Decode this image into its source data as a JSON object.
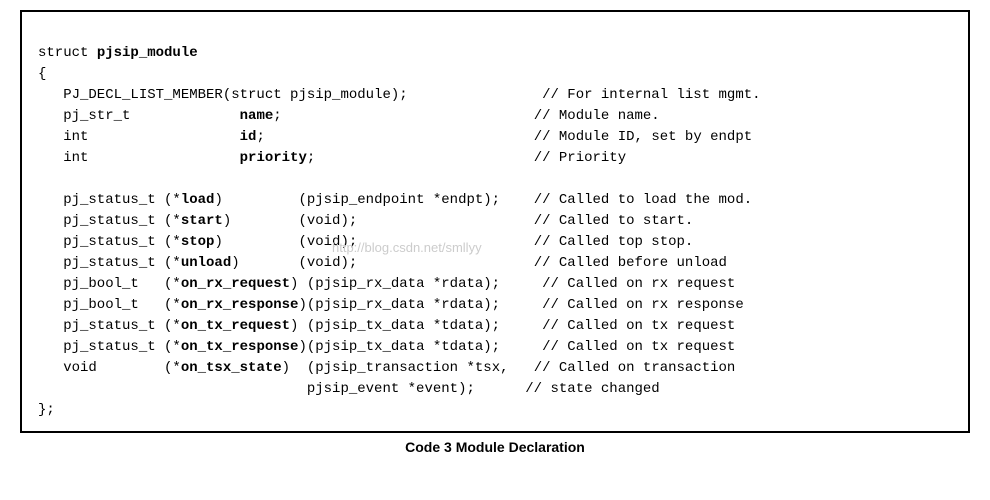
{
  "caption": "Code 3 Module Declaration",
  "watermark": "http://blog.csdn.net/smllyy",
  "code": {
    "l0": "struct ",
    "l0b": "pjsip_module",
    "l1": "{",
    "l2": "   PJ_DECL_LIST_MEMBER(struct pjsip_module);                // For internal list mgmt.",
    "l3a": "   pj_str_t             ",
    "l3b": "name",
    "l3c": ";                              // Module name.",
    "l4a": "   int                  ",
    "l4b": "id",
    "l4c": ";                                // Module ID, set by endpt",
    "l5a": "   int                  ",
    "l5b": "priority",
    "l5c": ";                          // Priority",
    "l7a": "   pj_status_t (*",
    "l7b": "load",
    "l7c": ")         (pjsip_endpoint *endpt);    // Called to load the mod.",
    "l8a": "   pj_status_t (*",
    "l8b": "start",
    "l8c": ")        (void);                     // Called to start.",
    "l9a": "   pj_status_t (*",
    "l9b": "stop",
    "l9c": ")         (void);                     // Called top stop.",
    "l10a": "   pj_status_t (*",
    "l10b": "unload",
    "l10c": ")       (void);                     // Called before unload",
    "l11a": "   pj_bool_t   (*",
    "l11b": "on_rx_request",
    "l11c": ") (pjsip_rx_data *rdata);     // Called on rx request",
    "l12a": "   pj_bool_t   (*",
    "l12b": "on_rx_response",
    "l12c": ")(pjsip_rx_data *rdata);     // Called on rx response",
    "l13a": "   pj_status_t (*",
    "l13b": "on_tx_request",
    "l13c": ") (pjsip_tx_data *tdata);     // Called on tx request",
    "l14a": "   pj_status_t (*",
    "l14b": "on_tx_response",
    "l14c": ")(pjsip_tx_data *tdata);     // Called on tx request",
    "l15a": "   void        (*",
    "l15b": "on_tsx_state",
    "l15c": ")  (pjsip_transaction *tsx,   // Called on transaction",
    "l16": "                                pjsip_event *event);      // state changed",
    "l17": "};"
  },
  "colors": {
    "border": "#000000",
    "text": "#000000",
    "background": "#ffffff",
    "watermark": "#cccccc"
  },
  "typography": {
    "code_font": "Courier New",
    "code_fontsize": 14,
    "caption_font": "Verdana",
    "caption_fontsize": 14,
    "caption_weight": "bold"
  }
}
